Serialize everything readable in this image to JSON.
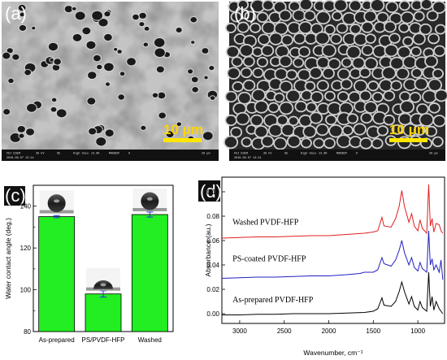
{
  "panels": {
    "a": {
      "label": "(a)",
      "scale_bar": "10 μm",
      "info": [
        "FEI ESEM",
        "30 kV",
        "SE",
        "High Vacu",
        "x3.0K",
        "MAHSEM",
        "0",
        "20 μm",
        "2018.09.07 13:14"
      ]
    },
    "b": {
      "label": "(b)",
      "scale_bar": "10 μm",
      "info": [
        "FEI ESEM",
        "30 kV",
        "SE",
        "High Vacu",
        "x3.0K",
        "MAHSEM",
        "0",
        "20 μm",
        "2018.09.07 13:21"
      ]
    },
    "c": {
      "label": "(c)"
    },
    "d": {
      "label": "(d)"
    }
  },
  "colors": {
    "bar_fill": "#22ee22",
    "error_bar": "#2233dd",
    "washed_line": "#e02020",
    "ps_line": "#2020c0",
    "asprep_line": "#000000",
    "scale_bar": "#ffe600"
  },
  "chart_data": [
    {
      "panel": "c",
      "type": "bar",
      "categories": [
        "As-prepared",
        "PS/PVDF-HFP",
        "Washed"
      ],
      "values": [
        135,
        98,
        136
      ],
      "errors": [
        0.5,
        1.5,
        1.2
      ],
      "ylabel": "Water contact angle (deg.)",
      "ylim": [
        80,
        150
      ],
      "yticks": [
        80,
        100,
        120,
        140
      ],
      "grid": false
    },
    {
      "panel": "d",
      "type": "line",
      "xlabel": "Wavenumber, cm⁻¹",
      "ylabel": "Absorbance (au.)",
      "xlim": [
        3200,
        700
      ],
      "ylim": [
        -0.008,
        0.112
      ],
      "xticks": [
        3000,
        2500,
        2000,
        1500,
        1000
      ],
      "yticks": [
        0.0,
        0.02,
        0.04,
        0.06,
        0.08,
        0.1
      ],
      "ytick_labels": [
        "0.00",
        "0.02",
        "0.04",
        "0.06",
        "0.08",
        "0.10"
      ],
      "grid": false,
      "series": [
        {
          "name": "Washed PVDF-HFP",
          "color": "#e02020",
          "points": [
            [
              3200,
              0.062
            ],
            [
              3000,
              0.0625
            ],
            [
              2800,
              0.063
            ],
            [
              2600,
              0.063
            ],
            [
              2400,
              0.0635
            ],
            [
              2200,
              0.064
            ],
            [
              2000,
              0.064
            ],
            [
              1800,
              0.065
            ],
            [
              1600,
              0.066
            ],
            [
              1500,
              0.067
            ],
            [
              1450,
              0.068
            ],
            [
              1403,
              0.079
            ],
            [
              1380,
              0.072
            ],
            [
              1300,
              0.071
            ],
            [
              1250,
              0.078
            ],
            [
              1210,
              0.088
            ],
            [
              1180,
              0.101
            ],
            [
              1150,
              0.088
            ],
            [
              1100,
              0.075
            ],
            [
              1070,
              0.082
            ],
            [
              1040,
              0.072
            ],
            [
              1000,
              0.068
            ],
            [
              975,
              0.077
            ],
            [
              950,
              0.07
            ],
            [
              900,
              0.066
            ],
            [
              878,
              0.106
            ],
            [
              860,
              0.072
            ],
            [
              840,
              0.078
            ],
            [
              820,
              0.067
            ],
            [
              795,
              0.074
            ],
            [
              760,
              0.073
            ],
            [
              740,
              0.068
            ],
            [
              720,
              0.066
            ]
          ]
        },
        {
          "name": "PS-coated PVDF-HFP",
          "color": "#2020c0",
          "points": [
            [
              3200,
              0.029
            ],
            [
              3000,
              0.0295
            ],
            [
              2800,
              0.03
            ],
            [
              2600,
              0.03
            ],
            [
              2400,
              0.0305
            ],
            [
              2200,
              0.031
            ],
            [
              2000,
              0.031
            ],
            [
              1800,
              0.032
            ],
            [
              1650,
              0.033
            ],
            [
              1600,
              0.034
            ],
            [
              1500,
              0.034
            ],
            [
              1450,
              0.036
            ],
            [
              1403,
              0.046
            ],
            [
              1380,
              0.041
            ],
            [
              1300,
              0.039
            ],
            [
              1250,
              0.044
            ],
            [
              1210,
              0.052
            ],
            [
              1180,
              0.06
            ],
            [
              1150,
              0.05
            ],
            [
              1100,
              0.04
            ],
            [
              1070,
              0.046
            ],
            [
              1040,
              0.038
            ],
            [
              1000,
              0.035
            ],
            [
              975,
              0.042
            ],
            [
              950,
              0.037
            ],
            [
              900,
              0.034
            ],
            [
              878,
              0.068
            ],
            [
              860,
              0.04
            ],
            [
              840,
              0.045
            ],
            [
              820,
              0.036
            ],
            [
              795,
              0.04
            ],
            [
              760,
              0.034
            ],
            [
              740,
              0.044
            ],
            [
              720,
              0.028
            ]
          ]
        },
        {
          "name": "As-prepared PVDF-HFP",
          "color": "#000000",
          "points": [
            [
              3200,
              -0.001
            ],
            [
              3000,
              -0.001
            ],
            [
              2800,
              -0.0005
            ],
            [
              2600,
              -0.0005
            ],
            [
              2400,
              0
            ],
            [
              2200,
              0
            ],
            [
              2000,
              0
            ],
            [
              1800,
              0.0005
            ],
            [
              1600,
              0.001
            ],
            [
              1500,
              0.002
            ],
            [
              1450,
              0.004
            ],
            [
              1403,
              0.013
            ],
            [
              1380,
              0.007
            ],
            [
              1300,
              0.006
            ],
            [
              1250,
              0.01
            ],
            [
              1210,
              0.018
            ],
            [
              1180,
              0.026
            ],
            [
              1150,
              0.018
            ],
            [
              1100,
              0.008
            ],
            [
              1070,
              0.014
            ],
            [
              1040,
              0.006
            ],
            [
              1000,
              0.003
            ],
            [
              975,
              0.01
            ],
            [
              950,
              0.005
            ],
            [
              900,
              0.002
            ],
            [
              878,
              0.034
            ],
            [
              860,
              0.006
            ],
            [
              840,
              0.014
            ],
            [
              820,
              0.003
            ],
            [
              795,
              0.01
            ],
            [
              760,
              0.004
            ],
            [
              740,
              0.002
            ],
            [
              720,
              0.0
            ]
          ]
        }
      ]
    }
  ]
}
